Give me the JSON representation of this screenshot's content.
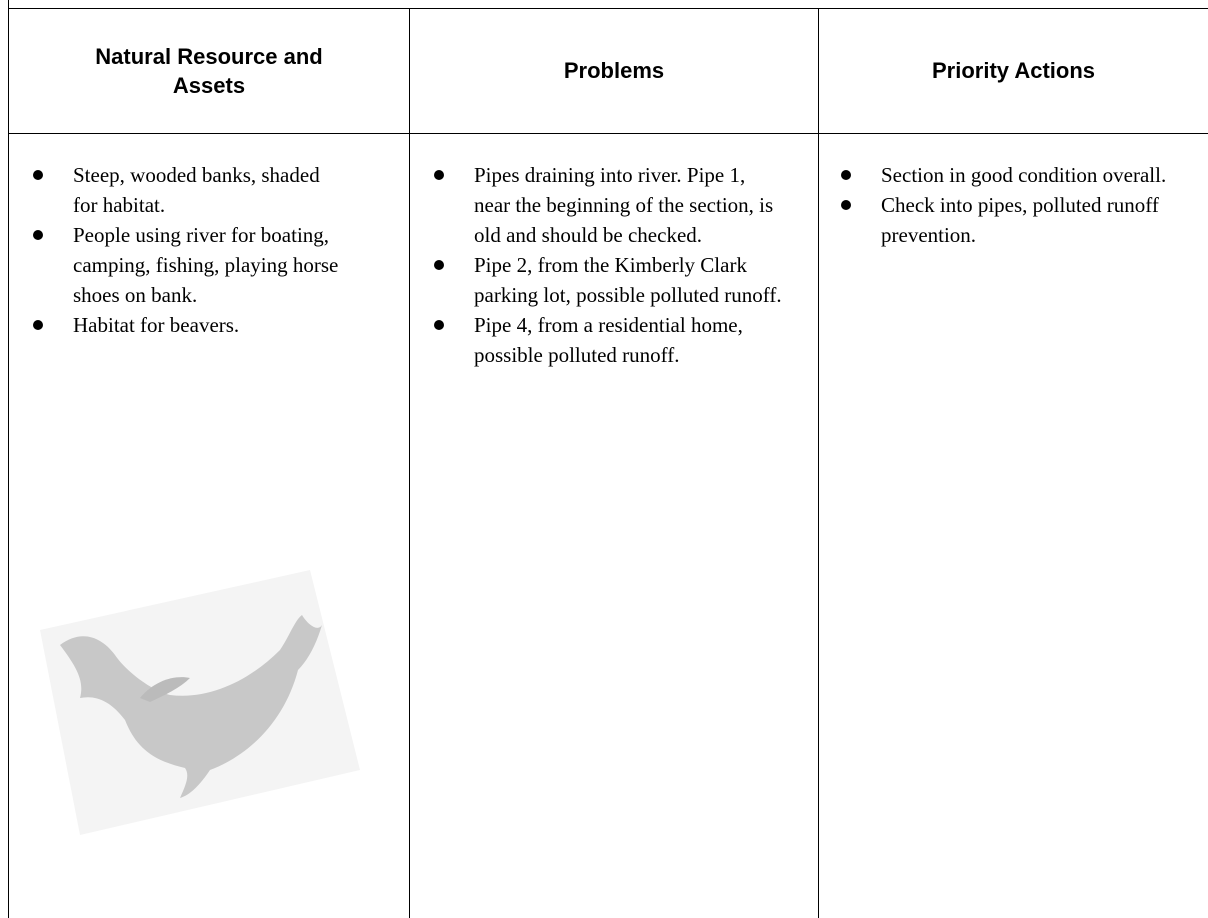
{
  "table": {
    "headers": [
      "Natural Resource and Assets",
      "Problems",
      "Priority Actions"
    ],
    "columns": [
      [
        "Steep, wooded banks, shaded for habitat.",
        "People using river for boating, camping, fishing, playing horse shoes on bank.",
        "Habitat for beavers."
      ],
      [
        "Pipes draining into river. Pipe 1, near the beginning of the section, is old and should be checked.",
        "Pipe 2, from the Kimberly Clark parking lot, possible polluted runoff.",
        "Pipe 4, from a residential home, possible polluted runoff."
      ],
      [
        "Section in good condition overall.",
        "Check into pipes, polluted runoff prevention."
      ]
    ]
  }
}
